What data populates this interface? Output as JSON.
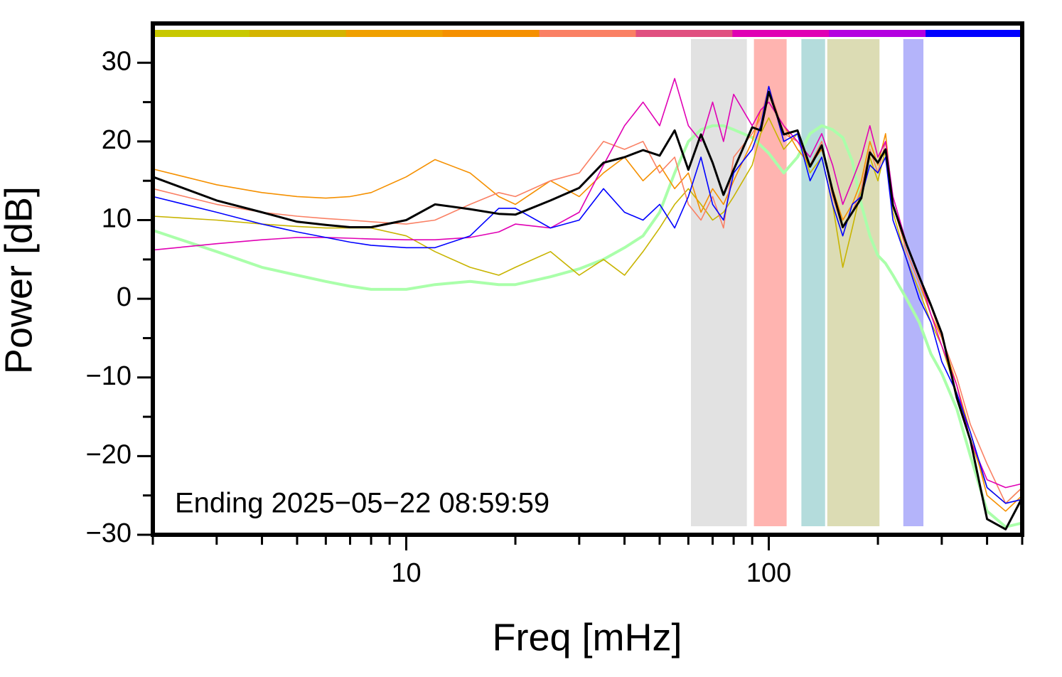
{
  "chart_data": {
    "type": "line",
    "xlabel": "Freq [mHz]",
    "ylabel": "Power [dB]",
    "annotation": "Ending 2025−05−22 08:59:59",
    "xscale": "log",
    "xlim": [
      2,
      500
    ],
    "ylim": [
      -30,
      35
    ],
    "xticks": [
      10,
      100
    ],
    "xminor": [
      2,
      3,
      4,
      5,
      6,
      7,
      8,
      9,
      20,
      30,
      40,
      50,
      60,
      70,
      80,
      90,
      200,
      300,
      400,
      500
    ],
    "yticks": [
      {
        "value": -30,
        "label": "−30"
      },
      {
        "value": -20,
        "label": "−20"
      },
      {
        "value": -10,
        "label": "−10"
      },
      0,
      10,
      20,
      30
    ],
    "yminor": [
      -25,
      -15,
      -5,
      5,
      15,
      25
    ],
    "colorbar": [
      "#c8c800",
      "#d4b400",
      "#f0a000",
      "#f59000",
      "#fa8064",
      "#e05080",
      "#e000b4",
      "#b400e0",
      "#0000ff"
    ],
    "bands": [
      {
        "xmin": 61,
        "xmax": 87,
        "color": "#e2e2e2"
      },
      {
        "xmin": 91,
        "xmax": 112,
        "color": "#ffb4b0"
      },
      {
        "xmin": 123,
        "xmax": 143,
        "color": "#b4dcdc"
      },
      {
        "xmin": 145,
        "xmax": 202,
        "color": "#dcdcb4"
      },
      {
        "xmin": 235,
        "xmax": 267,
        "color": "#b4b4fa"
      }
    ],
    "x": [
      2,
      3,
      4,
      5,
      6,
      7,
      8,
      10,
      12,
      15,
      18,
      20,
      25,
      30,
      35,
      40,
      45,
      50,
      55,
      60,
      65,
      70,
      75,
      80,
      90,
      95,
      100,
      110,
      120,
      130,
      140,
      150,
      160,
      170,
      180,
      190,
      200,
      210,
      220,
      240,
      260,
      280,
      300,
      330,
      360,
      400,
      450,
      500
    ],
    "series": [
      {
        "color": "#aaffaa",
        "width": 4,
        "values": [
          8.7,
          6,
          4,
          3,
          2.2,
          1.6,
          1.2,
          1.2,
          1.8,
          2.2,
          1.8,
          1.8,
          2.8,
          3.8,
          5,
          6.5,
          8,
          11,
          16,
          20,
          21.5,
          22,
          22,
          21.5,
          20.5,
          19.5,
          18.5,
          16,
          18,
          21,
          22,
          21.5,
          20.5,
          17.5,
          12,
          8,
          5.5,
          4.5,
          3,
          0,
          -3,
          -7,
          -9.5,
          -14,
          -20,
          -27,
          -29,
          -28.5
        ]
      },
      {
        "color": "#c8b400",
        "width": 1.6,
        "values": [
          10.5,
          10,
          9.5,
          9.2,
          9,
          9,
          9,
          8,
          6,
          4,
          3,
          4,
          6,
          3,
          5,
          3,
          6,
          9,
          12,
          14,
          12,
          10,
          11,
          13,
          17,
          21,
          23,
          19,
          21,
          16,
          18,
          12,
          4,
          9,
          14,
          18,
          15,
          19,
          11,
          5,
          1,
          -3,
          -6,
          -12,
          -18,
          -24,
          -26,
          -24
        ]
      },
      {
        "color": "#f59000",
        "width": 1.6,
        "values": [
          16.5,
          14.5,
          13.5,
          13,
          12.8,
          13,
          13.5,
          15.5,
          17.7,
          16,
          13,
          12,
          15,
          13,
          16,
          18,
          15,
          17,
          14,
          16,
          11,
          14,
          12,
          15,
          20,
          24,
          25,
          22,
          19,
          17,
          19,
          14,
          10,
          12,
          15,
          20,
          17,
          21,
          12,
          6,
          2,
          -2,
          -5,
          -11,
          -17,
          -25,
          -27,
          -25
        ]
      },
      {
        "color": "#fa8064",
        "width": 1.6,
        "values": [
          14,
          12,
          11,
          10.5,
          10.2,
          10,
          9.8,
          9.5,
          10,
          12,
          13.5,
          13,
          15,
          16,
          20,
          19,
          20,
          16,
          18,
          12,
          10,
          13,
          9,
          18,
          21,
          23,
          27,
          21,
          20,
          17,
          20,
          13,
          9,
          11,
          14,
          19,
          16,
          20,
          12,
          6,
          2,
          -1,
          -5,
          -10,
          -16,
          -21,
          -26,
          -24
        ]
      },
      {
        "color": "#e000b4",
        "width": 1.6,
        "values": [
          6.2,
          7,
          7.5,
          7.8,
          7.8,
          7.7,
          7.6,
          7.5,
          7.5,
          7.8,
          8.5,
          9.5,
          9,
          11,
          17,
          22,
          25,
          22,
          28,
          22,
          20,
          25,
          20,
          26,
          22,
          24,
          25,
          22,
          20,
          18,
          21,
          17,
          12,
          15,
          18,
          22,
          18,
          20,
          13,
          7,
          3,
          -2,
          -6,
          -11,
          -18,
          -23,
          -24,
          -23.5
        ]
      },
      {
        "color": "#0000ff",
        "width": 1.6,
        "values": [
          13,
          11,
          9.5,
          8.5,
          7.8,
          7.2,
          6.8,
          6.5,
          6.5,
          8,
          11.5,
          11.5,
          9,
          10,
          14,
          11,
          10,
          12,
          9,
          13,
          18,
          12,
          10,
          16,
          19,
          22,
          27,
          20,
          21,
          15,
          18,
          12,
          8,
          12,
          13,
          17,
          16,
          18,
          10,
          5,
          0,
          -3,
          -8,
          -12,
          -17,
          -24,
          -26,
          -25.5
        ]
      },
      {
        "color": "#000000",
        "width": 3,
        "values": [
          15.5,
          12.5,
          11,
          9.8,
          9.4,
          9.1,
          9.1,
          10,
          12,
          11.4,
          10.8,
          10.7,
          12.5,
          14.1,
          17.3,
          18,
          18.9,
          18.2,
          21.4,
          16.4,
          20.9,
          17.3,
          13.2,
          16.4,
          21.8,
          21.4,
          26.3,
          20.9,
          21.4,
          16.8,
          19.5,
          13.7,
          9.1,
          11,
          12.8,
          18.6,
          17.3,
          19,
          11.9,
          6.9,
          2.8,
          -0.8,
          -4.4,
          -12.6,
          -18,
          -28,
          -29.3,
          -25.3
        ]
      }
    ]
  }
}
